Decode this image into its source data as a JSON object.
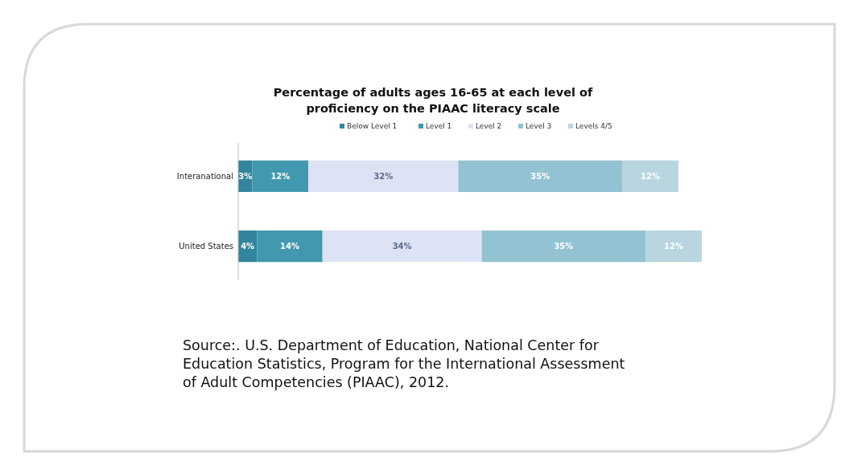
{
  "chart_data": {
    "type": "bar",
    "orientation": "horizontal",
    "stacked": true,
    "title": "Percentage of adults  ages 16-65 at each level of proficiency on the PIAAC literacy scale",
    "categories": [
      "Interanational",
      "United States"
    ],
    "series": [
      {
        "name": "Below Level 1",
        "color": "#31859c",
        "values": [
          3,
          4
        ],
        "value_labels": [
          "3%",
          "4%"
        ]
      },
      {
        "name": "Level 1",
        "color": "#4298ae",
        "values": [
          12,
          14
        ],
        "value_labels": [
          "12%",
          "14%"
        ]
      },
      {
        "name": "Level 2",
        "color": "#dde3f4",
        "values": [
          32,
          34
        ],
        "value_labels": [
          "32%",
          "34%"
        ]
      },
      {
        "name": "Level 3",
        "color": "#93c2d3",
        "values": [
          35,
          35
        ],
        "value_labels": [
          "35%",
          "35%"
        ]
      },
      {
        "name": "Levels 4/5",
        "color": "#b8d5e0",
        "values": [
          12,
          12
        ],
        "value_labels": [
          "12%",
          "12%"
        ]
      }
    ],
    "legend": "top",
    "annotations": [
      "Source:. U.S. Department of Education, National Center for Education Statistics, Program for the International Assessment of Adult Competencies (PIAAC), 2012."
    ]
  }
}
